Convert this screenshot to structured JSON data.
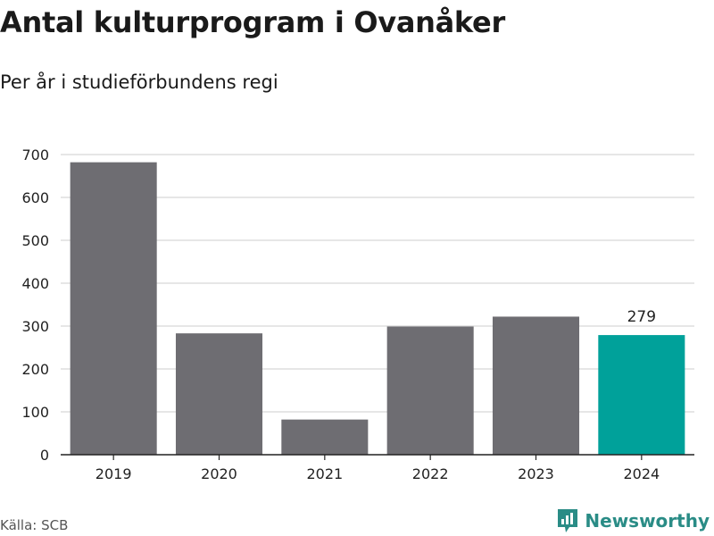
{
  "header": {
    "title": "Antal kulturprogram i Ovanåker",
    "subtitle": "Per år i studieförbundens regi"
  },
  "footer": {
    "source": "Källa: SCB",
    "brand": "Newsworthy"
  },
  "colors": {
    "bar": "#6e6d72",
    "highlight": "#00a19a",
    "grid": "#dddddd",
    "brand": "#2a8c86"
  },
  "chart_data": {
    "type": "bar",
    "categories": [
      "2019",
      "2020",
      "2021",
      "2022",
      "2023",
      "2024"
    ],
    "values": [
      682,
      283,
      82,
      299,
      322,
      279
    ],
    "highlight_index": 5,
    "data_labels": [
      {
        "index": 5,
        "text": "279"
      }
    ],
    "yticks": [
      "0",
      "100",
      "200",
      "300",
      "400",
      "500",
      "600",
      "700"
    ],
    "ylim": [
      0,
      700
    ],
    "grid": true,
    "legend": "none"
  }
}
